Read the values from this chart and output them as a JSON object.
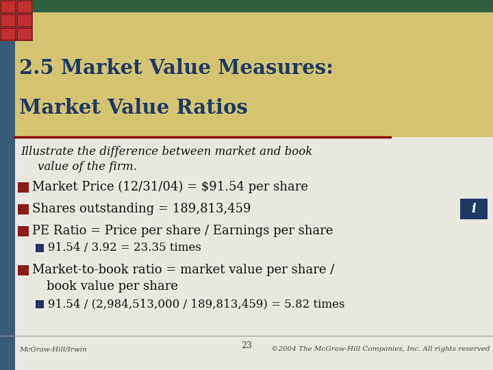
{
  "title_line1": "2.5 Market Value Measures:",
  "title_line2": "Market Value Ratios",
  "title_color": "#1F3864",
  "title_bg_top": "#C8BA6A",
  "title_bg_bottom": "#E8DC9A",
  "header_stripe_color": "#3A5A7A",
  "red_line_color": "#8B0000",
  "body_bg_color": "#E8E8E0",
  "bullet_color": "#8B1A1A",
  "sub_bullet_color": "#1F3864",
  "footer_left": "McGraw-Hill/Irwin",
  "footer_center": "23",
  "footer_right": "©2004 The McGraw-Hill Companies, Inc. All rights reserved",
  "info_box_color": "#1F3864",
  "info_box_text": "i",
  "corner_brick_color": "#8B3030",
  "top_stripe_color": "#2E6040"
}
